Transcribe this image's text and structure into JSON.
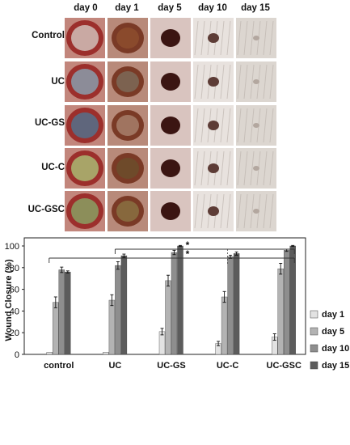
{
  "photo_grid": {
    "days": [
      "day 0",
      "day 1",
      "day 5",
      "day 10",
      "day 15"
    ],
    "groups": [
      "Control",
      "UC",
      "UC-GS",
      "UC-C",
      "UC-GSC"
    ]
  },
  "chart_data": {
    "type": "bar",
    "ylabel": "Wound Closure (%)",
    "xlabel": "",
    "ylim": [
      0,
      100
    ],
    "y_ticks": [
      0,
      20,
      40,
      60,
      80,
      100
    ],
    "categories": [
      "control",
      "UC",
      "UC-GS",
      "UC-C",
      "UC-GSC"
    ],
    "series": [
      {
        "name": "day 1",
        "color": "#e2e2e2",
        "values": [
          2,
          2,
          21,
          10,
          16
        ],
        "errors": [
          0,
          0,
          3,
          2,
          3
        ]
      },
      {
        "name": "day 5",
        "color": "#b3b3b3",
        "values": [
          48,
          50,
          68,
          53,
          79
        ],
        "errors": [
          5,
          5,
          5,
          5,
          5
        ]
      },
      {
        "name": "day 10",
        "color": "#8e8e8e",
        "values": [
          78,
          82,
          94,
          90,
          96
        ],
        "errors": [
          2.5,
          3.5,
          2,
          1.5,
          1
        ]
      },
      {
        "name": "day 15",
        "color": "#5c5c5c",
        "values": [
          76,
          91,
          100,
          93,
          100
        ],
        "errors": [
          1,
          1.5,
          0.5,
          1.5,
          0.5
        ]
      }
    ],
    "significance": [
      {
        "from": "UC",
        "to": "UC-GSC",
        "label": "*"
      },
      {
        "from": "control",
        "to": "UC-GSC",
        "label": "*"
      }
    ],
    "legend_position": "right",
    "grid": false
  }
}
